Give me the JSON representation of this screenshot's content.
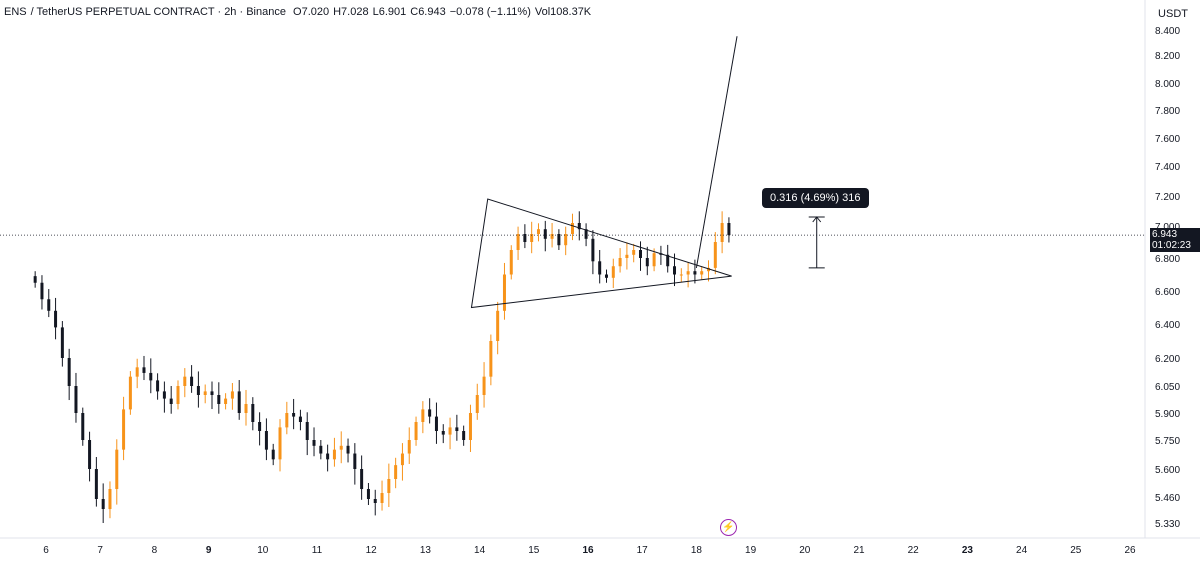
{
  "header": {
    "symbol": "ENS",
    "contract": "/ TetherUS PERPETUAL CONTRACT · 2h · Binance",
    "open": "O7.020",
    "high": "H7.028",
    "low": "L6.901",
    "close": "C6.943",
    "change": "−0.078 (−1.11%)",
    "volume": "Vol108.37K"
  },
  "currency": "USDT",
  "measure_label": "0.316 (4.69%) 316",
  "current_price": {
    "price": "6.943",
    "countdown": "01:02:23"
  },
  "icons": [
    "lightning-icon"
  ],
  "colors": {
    "up": "#f7931a",
    "down": "#131722",
    "line": "#131722",
    "tooltip_bg": "#131722"
  },
  "chart_data": {
    "type": "candlestick",
    "x_tick_labels": [
      "6",
      "7",
      "8",
      "9",
      "10",
      "11",
      "12",
      "13",
      "14",
      "15",
      "16",
      "17",
      "18",
      "19",
      "20",
      "21",
      "22",
      "23",
      "24",
      "25",
      "26"
    ],
    "y_tick_labels": [
      "8.400",
      "8.200",
      "8.000",
      "7.800",
      "7.600",
      "7.400",
      "7.200",
      "7.000",
      "6.800",
      "6.600",
      "6.400",
      "6.200",
      "6.050",
      "5.900",
      "5.750",
      "5.600",
      "5.460",
      "5.330"
    ],
    "ylim": [
      5.28,
      8.42
    ],
    "grid": false,
    "series": [
      {
        "values": [
          6.65,
          6.55,
          6.48,
          6.38,
          6.2,
          6.05,
          5.9,
          5.75,
          5.6,
          5.45,
          5.4,
          5.5,
          5.7,
          5.92,
          6.1,
          6.15,
          6.12,
          6.08,
          6.02,
          5.98,
          5.95,
          6.05,
          6.1,
          6.05,
          6.0,
          6.02,
          6.0,
          5.95,
          5.98,
          6.02,
          5.9,
          5.95,
          5.85,
          5.8,
          5.7,
          5.65,
          5.82,
          5.9,
          5.88,
          5.85,
          5.75,
          5.72,
          5.68,
          5.65,
          5.7,
          5.72,
          5.68,
          5.6,
          5.5,
          5.45,
          5.43,
          5.48,
          5.55,
          5.62,
          5.68,
          5.75,
          5.85,
          5.92,
          5.88,
          5.8,
          5.78,
          5.82,
          5.8,
          5.75,
          5.9,
          6.0,
          6.1,
          6.3,
          6.48,
          6.7,
          6.85,
          6.95,
          6.9,
          6.95,
          6.98,
          6.92,
          6.95,
          6.88,
          6.95,
          7.02,
          6.98,
          6.92,
          6.78,
          6.7,
          6.68,
          6.75,
          6.8,
          6.82,
          6.85,
          6.8,
          6.75,
          6.83,
          6.82,
          6.75,
          6.7,
          6.7,
          6.72,
          6.7,
          6.72,
          6.74,
          6.9,
          7.02,
          6.943
        ]
      },
      {
        "name": "triangle",
        "points": [
          [
            13.85,
            6.5
          ],
          [
            14.15,
            7.18
          ],
          [
            18.65,
            6.69
          ]
        ]
      },
      {
        "name": "breakout",
        "points": [
          [
            18.0,
            6.74
          ],
          [
            18.75,
            8.35
          ]
        ]
      },
      {
        "name": "measure",
        "points": [
          [
            20.22,
            7.06
          ],
          [
            20.22,
            6.74
          ]
        ],
        "value": 0.316
      }
    ]
  }
}
